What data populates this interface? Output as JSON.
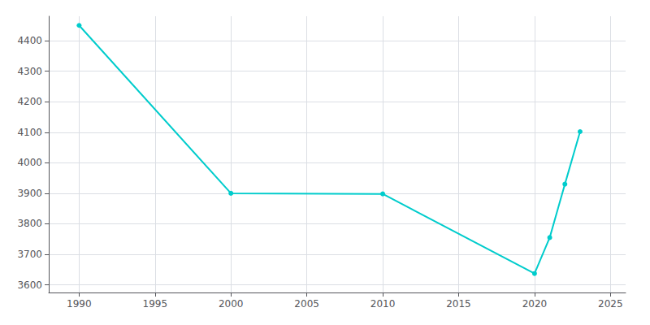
{
  "chart_data": {
    "type": "line",
    "x": [
      1990,
      2000,
      2010,
      2020,
      2021,
      2022,
      2023
    ],
    "values": [
      4450,
      3900,
      3898,
      3637,
      3755,
      3930,
      4102
    ],
    "color": "#00CCCC",
    "marker": "circle",
    "xlim": [
      1988,
      2026
    ],
    "ylim": [
      3575,
      4480
    ],
    "xticks": [
      1990,
      1995,
      2000,
      2005,
      2010,
      2015,
      2020,
      2025
    ],
    "yticks": [
      3600,
      3700,
      3800,
      3900,
      4000,
      4100,
      4200,
      4300,
      4400
    ],
    "grid": true
  }
}
